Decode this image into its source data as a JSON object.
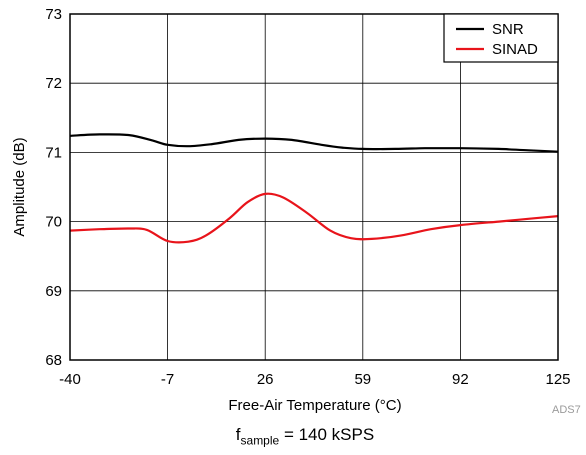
{
  "chart_data": {
    "type": "line",
    "xlabel": "Free-Air Temperature (°C)",
    "ylabel": "Amplitude (dB)",
    "x_ticks": [
      -40,
      -7,
      26,
      59,
      92,
      125
    ],
    "y_ticks": [
      68,
      69,
      70,
      71,
      72,
      73
    ],
    "xlim": [
      -40,
      125
    ],
    "ylim": [
      68,
      73
    ],
    "grid": true,
    "legend_position": "top-right",
    "series": [
      {
        "name": "SNR",
        "color": "#000000",
        "points": [
          [
            -40,
            71.24
          ],
          [
            -30,
            71.26
          ],
          [
            -20,
            71.25
          ],
          [
            -12,
            71.17
          ],
          [
            -7,
            71.11
          ],
          [
            0,
            71.09
          ],
          [
            8,
            71.12
          ],
          [
            17,
            71.18
          ],
          [
            26,
            71.2
          ],
          [
            35,
            71.18
          ],
          [
            45,
            71.11
          ],
          [
            52,
            71.07
          ],
          [
            59,
            71.05
          ],
          [
            70,
            71.05
          ],
          [
            80,
            71.06
          ],
          [
            92,
            71.06
          ],
          [
            105,
            71.05
          ],
          [
            115,
            71.03
          ],
          [
            125,
            71.01
          ]
        ]
      },
      {
        "name": "SINAD",
        "color": "#e8141b",
        "points": [
          [
            -40,
            69.87
          ],
          [
            -30,
            69.89
          ],
          [
            -20,
            69.9
          ],
          [
            -14,
            69.88
          ],
          [
            -7,
            69.72
          ],
          [
            0,
            69.71
          ],
          [
            6,
            69.8
          ],
          [
            14,
            70.05
          ],
          [
            20,
            70.28
          ],
          [
            26,
            70.4
          ],
          [
            32,
            70.35
          ],
          [
            40,
            70.13
          ],
          [
            48,
            69.87
          ],
          [
            55,
            69.76
          ],
          [
            62,
            69.75
          ],
          [
            72,
            69.8
          ],
          [
            82,
            69.89
          ],
          [
            92,
            69.95
          ],
          [
            105,
            70.0
          ],
          [
            115,
            70.04
          ],
          [
            125,
            70.08
          ]
        ]
      }
    ]
  },
  "figure_id": "ADS7",
  "caption": {
    "symbol": "f",
    "subscript": "sample",
    "value": "= 140 kSPS"
  }
}
